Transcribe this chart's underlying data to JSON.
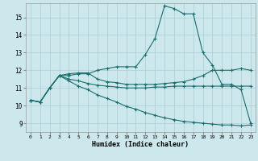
{
  "xlabel": "Humidex (Indice chaleur)",
  "bg_color": "#cce8ec",
  "grid_color": "#aacdd4",
  "line_color": "#1a6e6e",
  "xlim": [
    -0.5,
    23.5
  ],
  "ylim": [
    8.5,
    15.8
  ],
  "yticks": [
    9,
    10,
    11,
    12,
    13,
    14,
    15
  ],
  "xticks": [
    0,
    1,
    2,
    3,
    4,
    5,
    6,
    7,
    8,
    9,
    10,
    11,
    12,
    13,
    14,
    15,
    16,
    17,
    18,
    19,
    20,
    21,
    22,
    23
  ],
  "lines": [
    {
      "x": [
        0,
        1,
        2,
        3,
        4,
        5,
        6,
        7,
        8,
        9,
        10,
        11,
        12,
        13,
        14,
        15,
        16,
        17,
        18,
        19,
        20,
        21,
        22,
        23
      ],
      "y": [
        10.3,
        10.2,
        11.0,
        11.7,
        11.7,
        11.8,
        11.8,
        12.0,
        12.1,
        12.2,
        12.2,
        12.2,
        12.9,
        13.8,
        15.65,
        15.5,
        15.2,
        15.2,
        13.0,
        12.3,
        11.2,
        11.2,
        10.9,
        9.0
      ]
    },
    {
      "x": [
        0,
        1,
        2,
        3,
        4,
        5,
        6,
        7,
        8,
        9,
        10,
        11,
        12,
        13,
        14,
        15,
        16,
        17,
        18,
        19,
        20,
        21,
        22,
        23
      ],
      "y": [
        10.3,
        10.2,
        11.0,
        11.7,
        11.8,
        11.85,
        11.85,
        11.5,
        11.35,
        11.3,
        11.2,
        11.2,
        11.2,
        11.2,
        11.25,
        11.3,
        11.35,
        11.5,
        11.7,
        12.0,
        12.0,
        12.0,
        12.1,
        12.0
      ]
    },
    {
      "x": [
        0,
        1,
        2,
        3,
        4,
        5,
        6,
        7,
        8,
        9,
        10,
        11,
        12,
        13,
        14,
        15,
        16,
        17,
        18,
        19,
        20,
        21,
        22,
        23
      ],
      "y": [
        10.3,
        10.2,
        11.0,
        11.7,
        11.5,
        11.4,
        11.25,
        11.15,
        11.1,
        11.05,
        11.0,
        11.0,
        11.0,
        11.05,
        11.05,
        11.1,
        11.1,
        11.1,
        11.1,
        11.1,
        11.1,
        11.1,
        11.1,
        11.1
      ]
    },
    {
      "x": [
        0,
        1,
        2,
        3,
        4,
        5,
        6,
        7,
        8,
        9,
        10,
        11,
        12,
        13,
        14,
        15,
        16,
        17,
        18,
        19,
        20,
        21,
        22,
        23
      ],
      "y": [
        10.3,
        10.2,
        11.0,
        11.7,
        11.4,
        11.1,
        10.9,
        10.6,
        10.4,
        10.2,
        9.95,
        9.8,
        9.6,
        9.45,
        9.3,
        9.2,
        9.1,
        9.05,
        9.0,
        8.95,
        8.9,
        8.9,
        8.85,
        8.9
      ]
    }
  ]
}
